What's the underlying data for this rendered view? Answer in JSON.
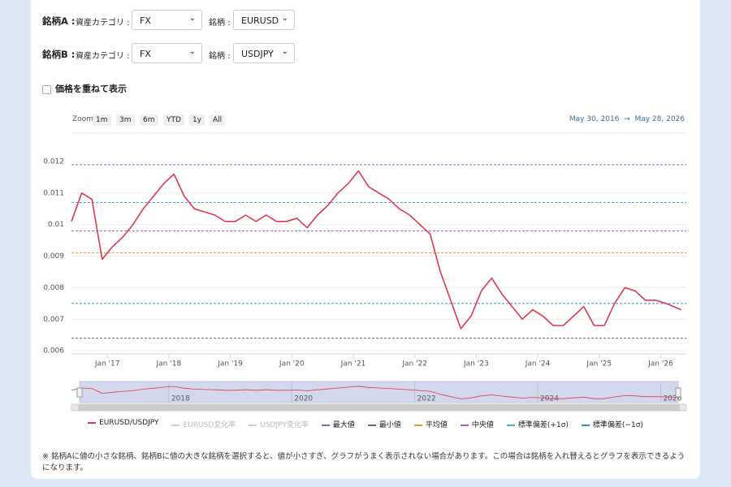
{
  "form": {
    "rows": [
      {
        "label": "銘柄A :",
        "category_label": "資産カテゴリ :",
        "category": "FX",
        "symbol_label": "銘柄 :",
        "symbol": "EURUSD"
      },
      {
        "label": "銘柄B :",
        "category_label": "資産カテゴリ :",
        "category": "FX",
        "symbol_label": "銘柄 :",
        "symbol": "USDJPY"
      }
    ],
    "overlay_checkbox": "価格を重ねて表示"
  },
  "zoom": {
    "label": "Zoom",
    "buttons": [
      "1m",
      "3m",
      "6m",
      "YTD",
      "1y",
      "All"
    ]
  },
  "date_range": {
    "from": "May 30, 2016",
    "arrow": "→",
    "to": "May 28, 2026"
  },
  "chart_data": {
    "type": "line",
    "x": [
      "2016-06",
      "2016-08",
      "2016-10",
      "2016-12",
      "2017-02",
      "2017-04",
      "2017-06",
      "2017-08",
      "2017-10",
      "2017-12",
      "2018-02",
      "2018-04",
      "2018-06",
      "2018-08",
      "2018-10",
      "2018-12",
      "2019-02",
      "2019-04",
      "2019-06",
      "2019-08",
      "2019-10",
      "2019-12",
      "2020-02",
      "2020-04",
      "2020-06",
      "2020-08",
      "2020-10",
      "2020-12",
      "2021-02",
      "2021-04",
      "2021-06",
      "2021-08",
      "2021-10",
      "2021-12",
      "2022-02",
      "2022-04",
      "2022-06",
      "2022-08",
      "2022-10",
      "2022-12",
      "2023-02",
      "2023-04",
      "2023-06",
      "2023-08",
      "2023-10",
      "2023-12",
      "2024-02",
      "2024-04",
      "2024-06",
      "2024-08",
      "2024-10",
      "2024-12",
      "2025-02",
      "2025-04",
      "2025-06",
      "2025-08",
      "2025-10",
      "2025-12",
      "2026-02",
      "2026-05"
    ],
    "series": [
      {
        "name": "EURUSD/USDJPY",
        "color": "#e0384f",
        "values": [
          0.0101,
          0.011,
          0.0108,
          0.0089,
          0.0093,
          0.0096,
          0.01,
          0.0105,
          0.0109,
          0.0113,
          0.0116,
          0.0109,
          0.0105,
          0.0104,
          0.0103,
          0.0101,
          0.0101,
          0.0103,
          0.0101,
          0.0103,
          0.0101,
          0.0101,
          0.0102,
          0.0099,
          0.0103,
          0.0106,
          0.011,
          0.0113,
          0.0117,
          0.0112,
          0.011,
          0.0108,
          0.0105,
          0.0103,
          0.01,
          0.0097,
          0.0085,
          0.0076,
          0.0067,
          0.0071,
          0.0079,
          0.0083,
          0.0078,
          0.0074,
          0.007,
          0.0073,
          0.0071,
          0.0068,
          0.0068,
          0.0071,
          0.0074,
          0.0068,
          0.0068,
          0.0075,
          0.008,
          0.0079,
          0.0076,
          0.0076,
          0.0075,
          0.0073
        ]
      }
    ],
    "hidden_series": [
      {
        "name": "EURUSD変化率",
        "color": "#cccccc"
      },
      {
        "name": "USDJPY変化率",
        "color": "#cccccc"
      }
    ],
    "reference_lines": [
      {
        "name": "最大値",
        "value": 0.0119,
        "color": "#8c5fc0"
      },
      {
        "name": "最小値",
        "value": 0.0064,
        "color": "#5a6a8a"
      },
      {
        "name": "平均値",
        "value": 0.0091,
        "color": "#f0902a"
      },
      {
        "name": "中央値",
        "value": 0.0098,
        "color": "#b060c0"
      },
      {
        "name": "標準偏差(+1σ)",
        "value": 0.0107,
        "color": "#3ab0d8"
      },
      {
        "name": "標準偏差(−1σ)",
        "value": 0.0075,
        "color": "#2a90c8"
      }
    ],
    "xlim": [
      "2016-06",
      "2026-06"
    ],
    "xticks": [
      {
        "value": "2017-01",
        "label": "Jan '17"
      },
      {
        "value": "2018-01",
        "label": "Jan '18"
      },
      {
        "value": "2019-01",
        "label": "Jan '19"
      },
      {
        "value": "2020-01",
        "label": "Jan '20"
      },
      {
        "value": "2021-01",
        "label": "Jan '21"
      },
      {
        "value": "2022-01",
        "label": "Jan '22"
      },
      {
        "value": "2023-01",
        "label": "Jan '23"
      },
      {
        "value": "2024-01",
        "label": "Jan '24"
      },
      {
        "value": "2025-01",
        "label": "Jan '25"
      },
      {
        "value": "2026-01",
        "label": "Jan '26"
      }
    ],
    "ylim": [
      0.0059,
      0.0129
    ],
    "yticks": [
      0.006,
      0.007,
      0.008,
      0.009,
      0.01,
      0.011,
      0.012
    ],
    "grid": true,
    "navigator_ticks": [
      {
        "value": "2018-01",
        "label": "2018"
      },
      {
        "value": "2020-01",
        "label": "2020"
      },
      {
        "value": "2022-01",
        "label": "2022"
      },
      {
        "value": "2024-01",
        "label": "2024"
      },
      {
        "value": "2026-01",
        "label": "2026"
      }
    ]
  },
  "note": "※ 銘柄Aに値の小さな銘柄、銘柄Bに値の大きな銘柄を選択すると、値が小さすぎ、グラフがうまく表示されない場合があります。この場合は銘柄を入れ替えるとグラフを表示できるようになります。"
}
